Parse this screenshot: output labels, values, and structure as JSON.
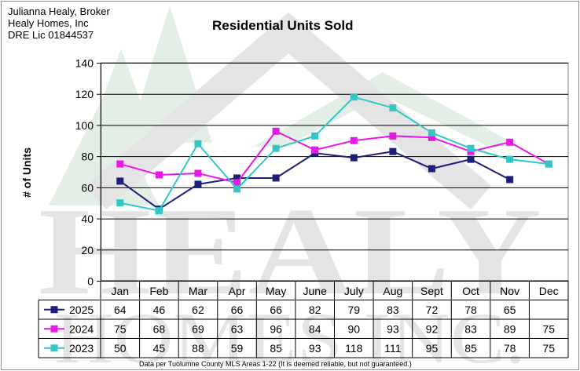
{
  "header": {
    "line1": "Julianna Healy, Broker",
    "line2": "Healy Homes, Inc",
    "line3": "DRE Lic 01844537"
  },
  "watermark": {
    "word1": "HEALY",
    "word2": "HOMES INC."
  },
  "footer": "Data per Tuolumne County MLS Areas 1-22 (It is deemed reliable, but not guaranteed.)",
  "colors": {
    "2025": "#1f1f7a",
    "2024": "#e619e6",
    "2023": "#33c6c6"
  },
  "chart_data": {
    "type": "line",
    "title": "Residential Units Sold",
    "xlabel": "",
    "ylabel": "# of Units",
    "ylim": [
      0,
      140
    ],
    "yticks": [
      0,
      20,
      40,
      60,
      80,
      100,
      120,
      140
    ],
    "grid": true,
    "legend": "data-table-left",
    "categories": [
      "Jan",
      "Feb",
      "Mar",
      "Apr",
      "May",
      "June",
      "July",
      "Aug",
      "Sept",
      "Oct",
      "Nov",
      "Dec"
    ],
    "series": [
      {
        "name": "2025",
        "values": [
          64,
          46,
          62,
          66,
          66,
          82,
          79,
          83,
          72,
          78,
          65,
          null
        ]
      },
      {
        "name": "2024",
        "values": [
          75,
          68,
          69,
          63,
          96,
          84,
          90,
          93,
          92,
          83,
          89,
          75
        ]
      },
      {
        "name": "2023",
        "values": [
          50,
          45,
          88,
          59,
          85,
          93,
          118,
          111,
          95,
          85,
          78,
          75
        ]
      }
    ]
  }
}
